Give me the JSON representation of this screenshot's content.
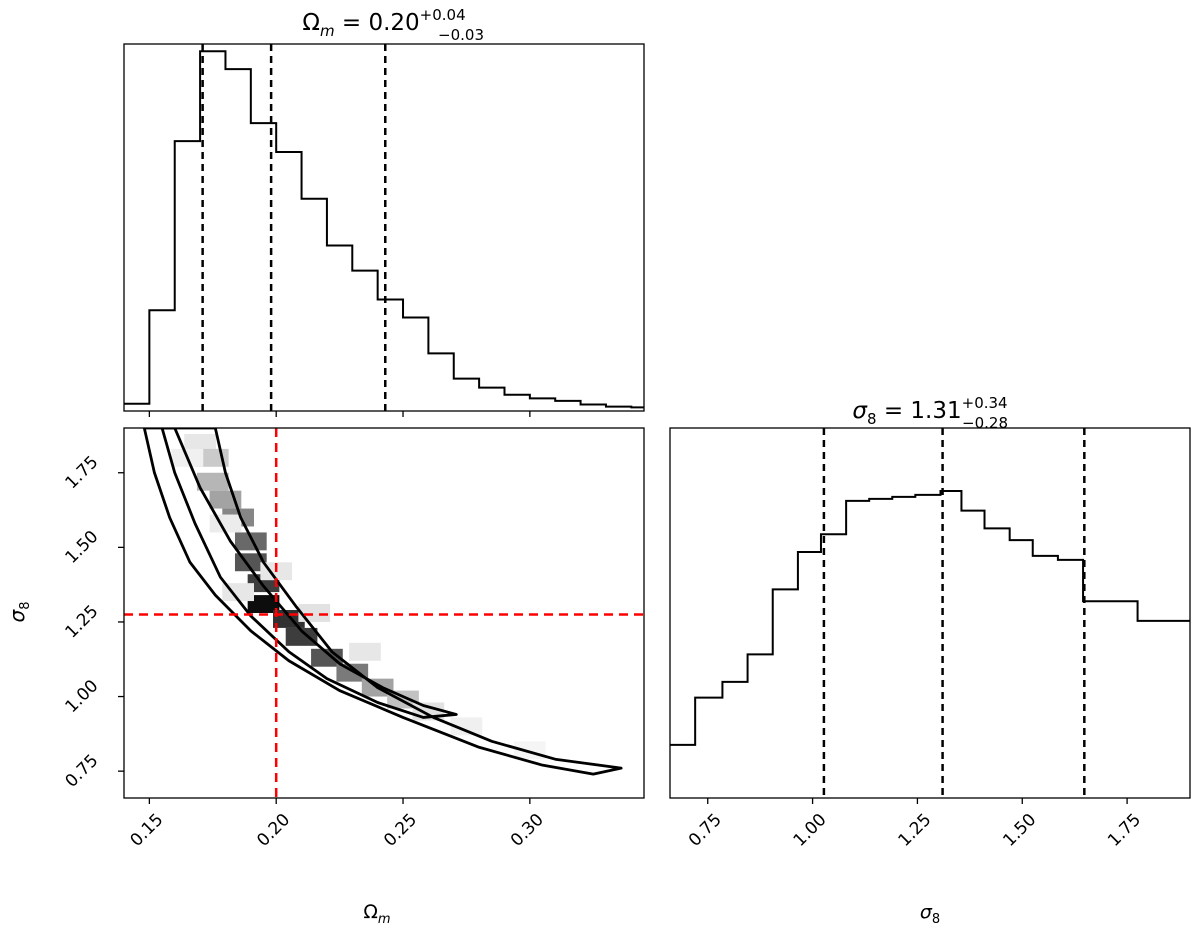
{
  "chart_data": [
    {
      "panel": "omega-m-marginal",
      "type": "histogram",
      "title_main": "Ω",
      "title_sub": "m",
      "title_eq": " = 0.20",
      "title_sup": "+0.04",
      "title_inf": "−0.03",
      "xlim": [
        0.14,
        0.345
      ],
      "bin_edges": [
        0.14,
        0.15,
        0.16,
        0.17,
        0.18,
        0.19,
        0.2,
        0.21,
        0.22,
        0.23,
        0.24,
        0.25,
        0.26,
        0.27,
        0.28,
        0.29,
        0.3,
        0.31,
        0.32,
        0.33,
        0.34,
        0.345
      ],
      "counts": [
        0.02,
        0.28,
        0.75,
        1.0,
        0.95,
        0.8,
        0.72,
        0.59,
        0.46,
        0.39,
        0.31,
        0.26,
        0.16,
        0.09,
        0.065,
        0.045,
        0.035,
        0.028,
        0.018,
        0.012,
        0.01
      ],
      "ymax": 1.02,
      "quantiles": [
        0.171,
        0.198,
        0.243
      ]
    },
    {
      "panel": "joint-2d",
      "type": "heatmap",
      "xlabel_main": "Ω",
      "xlabel_sub": "m",
      "ylabel_main": "σ",
      "ylabel_sub": "8",
      "xlim": [
        0.14,
        0.345
      ],
      "ylim": [
        0.66,
        1.9
      ],
      "x_ticks": [
        "0.15",
        "0.20",
        "0.25",
        "0.30"
      ],
      "x_tick_values": [
        0.15,
        0.2,
        0.25,
        0.3
      ],
      "y_ticks": [
        "0.75",
        "1.00",
        "1.25",
        "1.50",
        "1.75"
      ],
      "y_tick_values": [
        0.75,
        1.0,
        1.25,
        1.5,
        1.75
      ],
      "truth": {
        "x": 0.2,
        "y": 1.275,
        "color": "#ff0000"
      },
      "density_cells": [
        {
          "x": 0.17,
          "y": 1.85,
          "v": 0.1
        },
        {
          "x": 0.175,
          "y": 1.8,
          "v": 0.22
        },
        {
          "x": 0.175,
          "y": 1.72,
          "v": 0.3
        },
        {
          "x": 0.18,
          "y": 1.66,
          "v": 0.38
        },
        {
          "x": 0.185,
          "y": 1.6,
          "v": 0.5
        },
        {
          "x": 0.19,
          "y": 1.52,
          "v": 0.62
        },
        {
          "x": 0.19,
          "y": 1.45,
          "v": 0.7
        },
        {
          "x": 0.195,
          "y": 1.38,
          "v": 0.8
        },
        {
          "x": 0.195,
          "y": 1.31,
          "v": 1.0
        },
        {
          "x": 0.205,
          "y": 1.26,
          "v": 0.85
        },
        {
          "x": 0.21,
          "y": 1.2,
          "v": 0.8
        },
        {
          "x": 0.22,
          "y": 1.13,
          "v": 0.7
        },
        {
          "x": 0.23,
          "y": 1.08,
          "v": 0.55
        },
        {
          "x": 0.24,
          "y": 1.03,
          "v": 0.38
        },
        {
          "x": 0.25,
          "y": 0.99,
          "v": 0.25
        },
        {
          "x": 0.26,
          "y": 0.95,
          "v": 0.12
        },
        {
          "x": 0.275,
          "y": 0.9,
          "v": 0.06
        },
        {
          "x": 0.3,
          "y": 0.82,
          "v": 0.04
        },
        {
          "x": 0.165,
          "y": 1.8,
          "v": 0.06
        },
        {
          "x": 0.18,
          "y": 1.58,
          "v": 0.08
        },
        {
          "x": 0.215,
          "y": 1.28,
          "v": 0.12
        },
        {
          "x": 0.2,
          "y": 1.42,
          "v": 0.1
        },
        {
          "x": 0.235,
          "y": 1.15,
          "v": 0.1
        },
        {
          "x": 0.185,
          "y": 1.35,
          "v": 0.1
        }
      ],
      "contours": [
        {
          "level": "inner",
          "points": [
            [
              0.16,
              1.9
            ],
            [
              0.17,
              1.7
            ],
            [
              0.182,
              1.52
            ],
            [
              0.195,
              1.37
            ],
            [
              0.21,
              1.22
            ],
            [
              0.225,
              1.11
            ],
            [
              0.242,
              1.03
            ],
            [
              0.258,
              0.97
            ],
            [
              0.271,
              0.94
            ],
            [
              0.258,
              0.93
            ],
            [
              0.24,
              0.98
            ],
            [
              0.22,
              1.06
            ],
            [
              0.205,
              1.15
            ],
            [
              0.19,
              1.27
            ],
            [
              0.178,
              1.4
            ],
            [
              0.168,
              1.58
            ],
            [
              0.16,
              1.75
            ],
            [
              0.155,
              1.9
            ]
          ]
        },
        {
          "level": "outer",
          "points": [
            [
              0.148,
              1.9
            ],
            [
              0.152,
              1.75
            ],
            [
              0.158,
              1.6
            ],
            [
              0.166,
              1.45
            ],
            [
              0.176,
              1.34
            ],
            [
              0.19,
              1.22
            ],
            [
              0.205,
              1.12
            ],
            [
              0.225,
              1.02
            ],
            [
              0.25,
              0.93
            ],
            [
              0.28,
              0.83
            ],
            [
              0.305,
              0.77
            ],
            [
              0.325,
              0.74
            ],
            [
              0.336,
              0.76
            ],
            [
              0.31,
              0.79
            ],
            [
              0.285,
              0.85
            ],
            [
              0.262,
              0.93
            ],
            [
              0.24,
              1.03
            ],
            [
              0.222,
              1.15
            ],
            [
              0.208,
              1.3
            ],
            [
              0.195,
              1.45
            ],
            [
              0.186,
              1.6
            ],
            [
              0.18,
              1.75
            ],
            [
              0.176,
              1.9
            ]
          ]
        }
      ]
    },
    {
      "panel": "sigma-8-marginal",
      "type": "histogram",
      "title_main": "σ",
      "title_sub": "8",
      "title_eq": " = 1.31",
      "title_sup": "+0.34",
      "title_inf": "−0.28",
      "xlabel_main": "σ",
      "xlabel_sub": "8",
      "xlim": [
        0.66,
        1.9
      ],
      "x_ticks": [
        "0.75",
        "1.00",
        "1.25",
        "1.50",
        "1.75"
      ],
      "x_tick_values": [
        0.75,
        1.0,
        1.25,
        1.5,
        1.75
      ],
      "bin_edges": [
        0.66,
        0.72,
        0.785,
        0.845,
        0.905,
        0.965,
        1.02,
        1.08,
        1.135,
        1.19,
        1.245,
        1.305,
        1.355,
        1.41,
        1.47,
        1.525,
        1.585,
        1.645,
        1.715,
        1.775,
        1.9
      ],
      "counts": [
        0.27,
        0.51,
        0.59,
        0.73,
        1.06,
        1.25,
        1.34,
        1.51,
        1.52,
        1.53,
        1.54,
        1.56,
        1.46,
        1.37,
        1.31,
        1.23,
        1.21,
        1.0,
        1.0,
        0.9
      ],
      "ymax": 1.88,
      "quantiles": [
        1.027,
        1.31,
        1.648
      ]
    }
  ]
}
